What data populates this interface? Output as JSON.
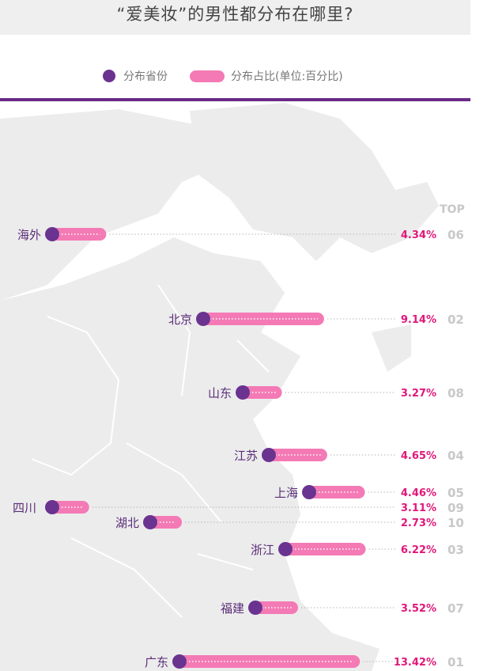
{
  "title": "“爱美妆”的男性都分布在哪里?",
  "legend": {
    "province": "分布省份",
    "share": "分布占比(单位:百分比)"
  },
  "top_label": "TOP",
  "colors": {
    "dot": "#6a3390",
    "bar": "#f47ab5",
    "value": "#e0187a",
    "rank": "#c8c8c8",
    "divider": "#6a2a86"
  },
  "chart_data": {
    "type": "bar",
    "title": "“爱美妆”的男性都分布在哪里?",
    "units": "百分比",
    "categories": [
      "海外",
      "北京",
      "山东",
      "江苏",
      "上海",
      "四川",
      "湖北",
      "浙江",
      "福建",
      "广东"
    ],
    "values": [
      4.34,
      9.14,
      3.27,
      4.65,
      4.46,
      3.11,
      2.73,
      6.22,
      3.52,
      13.42
    ],
    "value_labels": [
      "4.34%",
      "9.14%",
      "3.27%",
      "4.65%",
      "4.46%",
      "3.11%",
      "2.73%",
      "6.22%",
      "3.52%",
      "13.42%"
    ],
    "ranks": [
      "06",
      "02",
      "08",
      "04",
      "05",
      "09",
      "10",
      "03",
      "07",
      "01"
    ]
  }
}
